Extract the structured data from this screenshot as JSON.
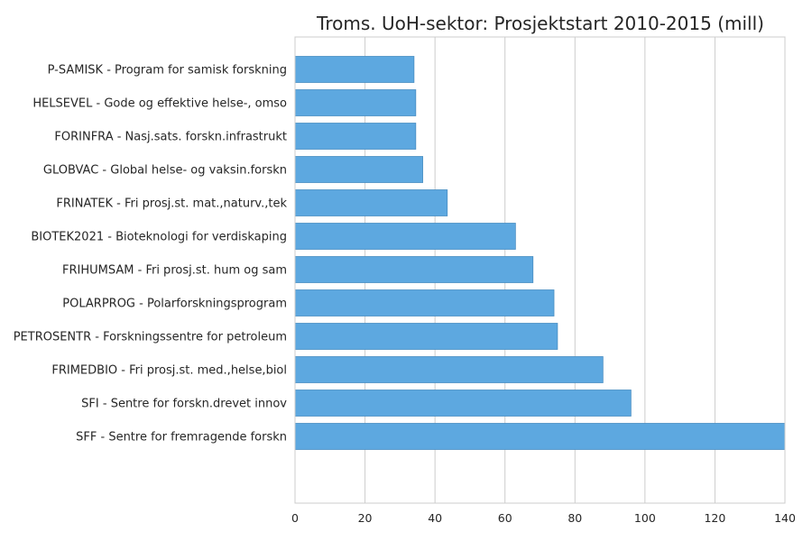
{
  "chart_data": {
    "type": "bar",
    "orientation": "horizontal",
    "title": "Troms. UoH-sektor: Prosjektstart 2010-2015 (mill)",
    "xlabel": "",
    "ylabel": "",
    "categories": [
      "SFF - Sentre for fremragende forskn",
      "SFI - Sentre for forskn.drevet innov",
      "FRIMEDBIO - Fri prosj.st. med.,helse,biol",
      "PETROSENTR - Forskningssentre for petroleum",
      "POLARPROG - Polarforskningsprogram",
      "FRIHUMSAM - Fri prosj.st. hum og sam",
      "BIOTEK2021 - Bioteknologi for verdiskaping",
      "FRINATEK - Fri prosj.st. mat.,naturv.,tek",
      "GLOBVAC - Global helse- og vaksin.forskn",
      "FORINFRA - Nasj.sats. forskn.infrastrukt",
      "HELSEVEL - Gode og effektive helse-, omso",
      "P-SAMISK - Program for samisk forskning"
    ],
    "values": [
      140,
      96,
      88,
      75,
      74,
      68,
      63,
      43.5,
      36.5,
      34.5,
      34.5,
      34
    ],
    "xlim": [
      0,
      140
    ],
    "xticks": [
      0,
      20,
      40,
      60,
      80,
      100,
      120,
      140
    ],
    "grid": true,
    "bar_color": "#5DA8E0",
    "bar_edge_color": "#4A8EC2"
  }
}
